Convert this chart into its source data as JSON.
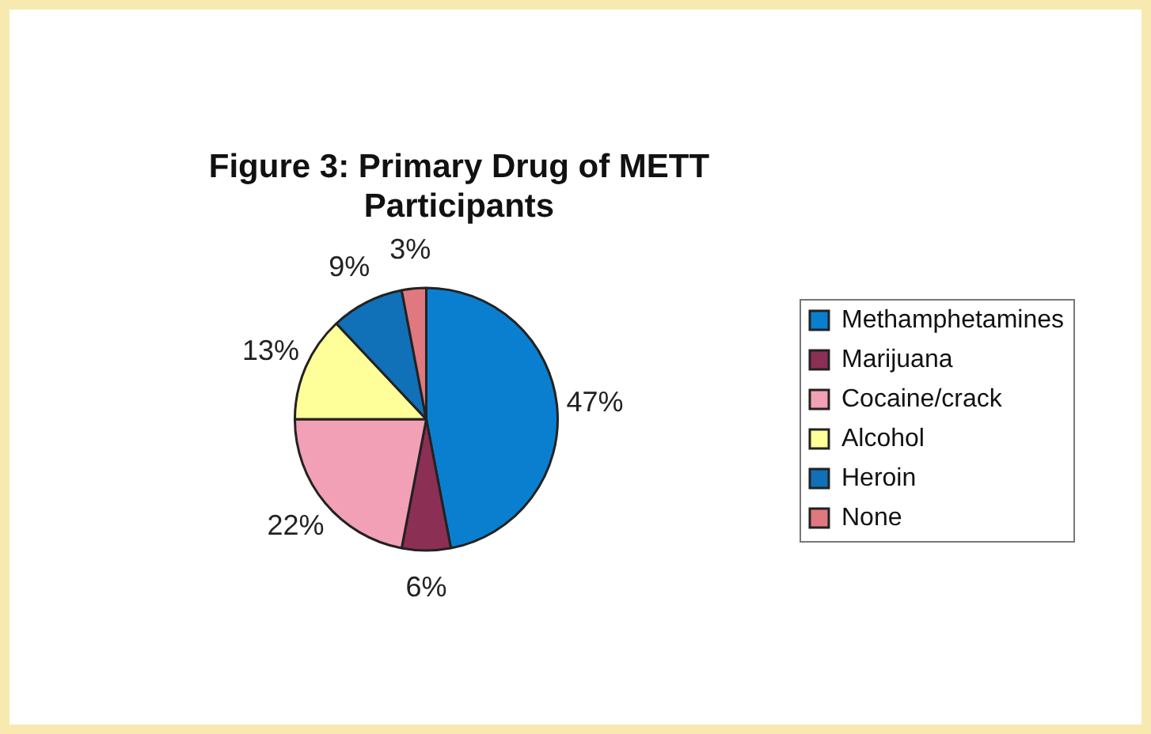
{
  "chart_data": {
    "type": "pie",
    "title": "Figure 3: Primary Drug of METT Participants",
    "categories": [
      "Methamphetamines",
      "Marijuana",
      "Cocaine/crack",
      "Alcohol",
      "Heroin",
      "None"
    ],
    "values": [
      47,
      6,
      22,
      13,
      9,
      3
    ],
    "value_labels": [
      "47%",
      "6%",
      "22%",
      "13%",
      "9%",
      "3%"
    ],
    "colors": [
      "#0a7fd0",
      "#8c2f55",
      "#f2a0b5",
      "#ffff99",
      "#1070b8",
      "#e07880"
    ],
    "legend": "right"
  }
}
